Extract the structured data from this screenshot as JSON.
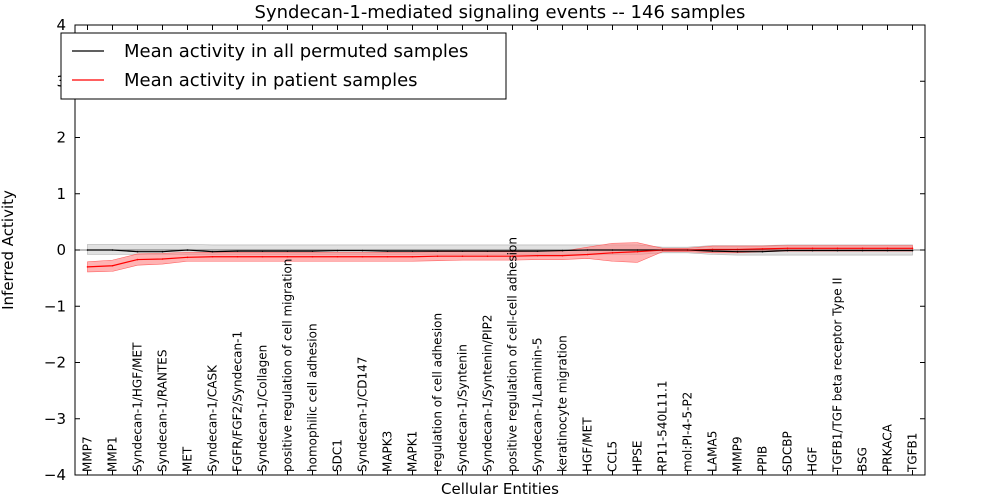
{
  "chart_data": {
    "type": "line",
    "title": "Syndecan-1-mediated signaling events -- 146 samples",
    "xlabel": "Cellular Entities",
    "ylabel": "Inferred Activity",
    "ylim": [
      -4,
      4
    ],
    "yticks": [
      -4,
      -3,
      -2,
      -1,
      0,
      1,
      2,
      3,
      4
    ],
    "ytick_labels": [
      "−4",
      "−3",
      "−2",
      "−1",
      "0",
      "1",
      "2",
      "3",
      "4"
    ],
    "grid": false,
    "legend_position": "top-left",
    "categories": [
      "MMP7",
      "MMP1",
      "Syndecan-1/HGF/MET",
      "Syndecan-1/RANTES",
      "MET",
      "Syndecan-1/CASK",
      "FGFR/FGF2/Syndecan-1",
      "Syndecan-1/Collagen",
      "positive regulation of cell migration",
      "homophilic cell adhesion",
      "SDC1",
      "Syndecan-1/CD147",
      "MAPK3",
      "MAPK1",
      "regulation of cell adhesion",
      "Syndecan-1/Syntenin",
      "Syndecan-1/Syntenin/PIP2",
      "positive regulation of cell-cell adhesion",
      "Syndecan-1/Laminin-5",
      "keratinocyte migration",
      "HGF/MET",
      "CCL5",
      "HPSE",
      "RP11-540L11.1",
      "mol:PI-4-5-P2",
      "LAMA5",
      "MMP9",
      "PPIB",
      "SDCBP",
      "HGF",
      "TGFB1/TGF beta receptor Type II",
      "BSG",
      "PRKACA",
      "TGFB1"
    ],
    "series": [
      {
        "name": "Mean activity in all permuted samples",
        "color": "#000000",
        "band_color": "#c8c8c8",
        "values": [
          0.0,
          0.0,
          -0.03,
          -0.03,
          0.0,
          -0.03,
          -0.02,
          -0.02,
          -0.02,
          -0.02,
          -0.01,
          -0.01,
          -0.02,
          -0.02,
          -0.02,
          -0.02,
          -0.02,
          -0.02,
          -0.02,
          -0.01,
          0.0,
          0.0,
          0.0,
          0.0,
          0.0,
          -0.02,
          -0.03,
          -0.03,
          -0.01,
          -0.01,
          -0.01,
          -0.01,
          -0.01,
          -0.01
        ],
        "lower": [
          -0.08,
          -0.08,
          -0.08,
          -0.08,
          -0.08,
          -0.08,
          -0.08,
          -0.08,
          -0.08,
          -0.08,
          -0.08,
          -0.08,
          -0.08,
          -0.08,
          -0.08,
          -0.08,
          -0.08,
          -0.08,
          -0.08,
          -0.08,
          -0.08,
          -0.08,
          -0.08,
          -0.05,
          -0.05,
          -0.08,
          -0.09,
          -0.09,
          -0.09,
          -0.09,
          -0.09,
          -0.09,
          -0.09,
          -0.09
        ],
        "upper": [
          0.1,
          0.1,
          0.1,
          0.1,
          0.1,
          0.09,
          0.09,
          0.09,
          0.09,
          0.09,
          0.09,
          0.09,
          0.09,
          0.09,
          0.09,
          0.09,
          0.09,
          0.09,
          0.09,
          0.09,
          0.09,
          0.09,
          0.09,
          0.05,
          0.05,
          0.08,
          0.08,
          0.08,
          0.09,
          0.09,
          0.09,
          0.09,
          0.09,
          0.09
        ]
      },
      {
        "name": "Mean activity in patient samples",
        "color": "#ff0000",
        "band_color": "#ff8080",
        "values": [
          -0.3,
          -0.28,
          -0.17,
          -0.16,
          -0.13,
          -0.12,
          -0.12,
          -0.12,
          -0.12,
          -0.12,
          -0.12,
          -0.12,
          -0.12,
          -0.12,
          -0.11,
          -0.11,
          -0.11,
          -0.11,
          -0.1,
          -0.1,
          -0.08,
          -0.05,
          -0.03,
          0.0,
          0.0,
          0.01,
          0.01,
          0.02,
          0.03,
          0.03,
          0.03,
          0.03,
          0.03,
          0.03
        ],
        "lower": [
          -0.39,
          -0.38,
          -0.27,
          -0.25,
          -0.2,
          -0.2,
          -0.2,
          -0.2,
          -0.2,
          -0.2,
          -0.2,
          -0.2,
          -0.2,
          -0.2,
          -0.19,
          -0.18,
          -0.18,
          -0.18,
          -0.17,
          -0.17,
          -0.15,
          -0.2,
          -0.22,
          -0.03,
          -0.03,
          -0.05,
          -0.05,
          -0.03,
          -0.02,
          -0.02,
          -0.02,
          -0.02,
          -0.02,
          -0.02
        ],
        "upper": [
          -0.21,
          -0.18,
          -0.07,
          -0.06,
          -0.04,
          -0.04,
          -0.04,
          -0.04,
          -0.04,
          -0.04,
          -0.04,
          -0.04,
          -0.04,
          -0.04,
          -0.03,
          -0.03,
          -0.03,
          -0.03,
          -0.02,
          -0.02,
          0.05,
          0.12,
          0.13,
          0.03,
          0.03,
          0.07,
          0.07,
          0.07,
          0.08,
          0.08,
          0.08,
          0.08,
          0.08,
          0.08
        ]
      }
    ]
  }
}
